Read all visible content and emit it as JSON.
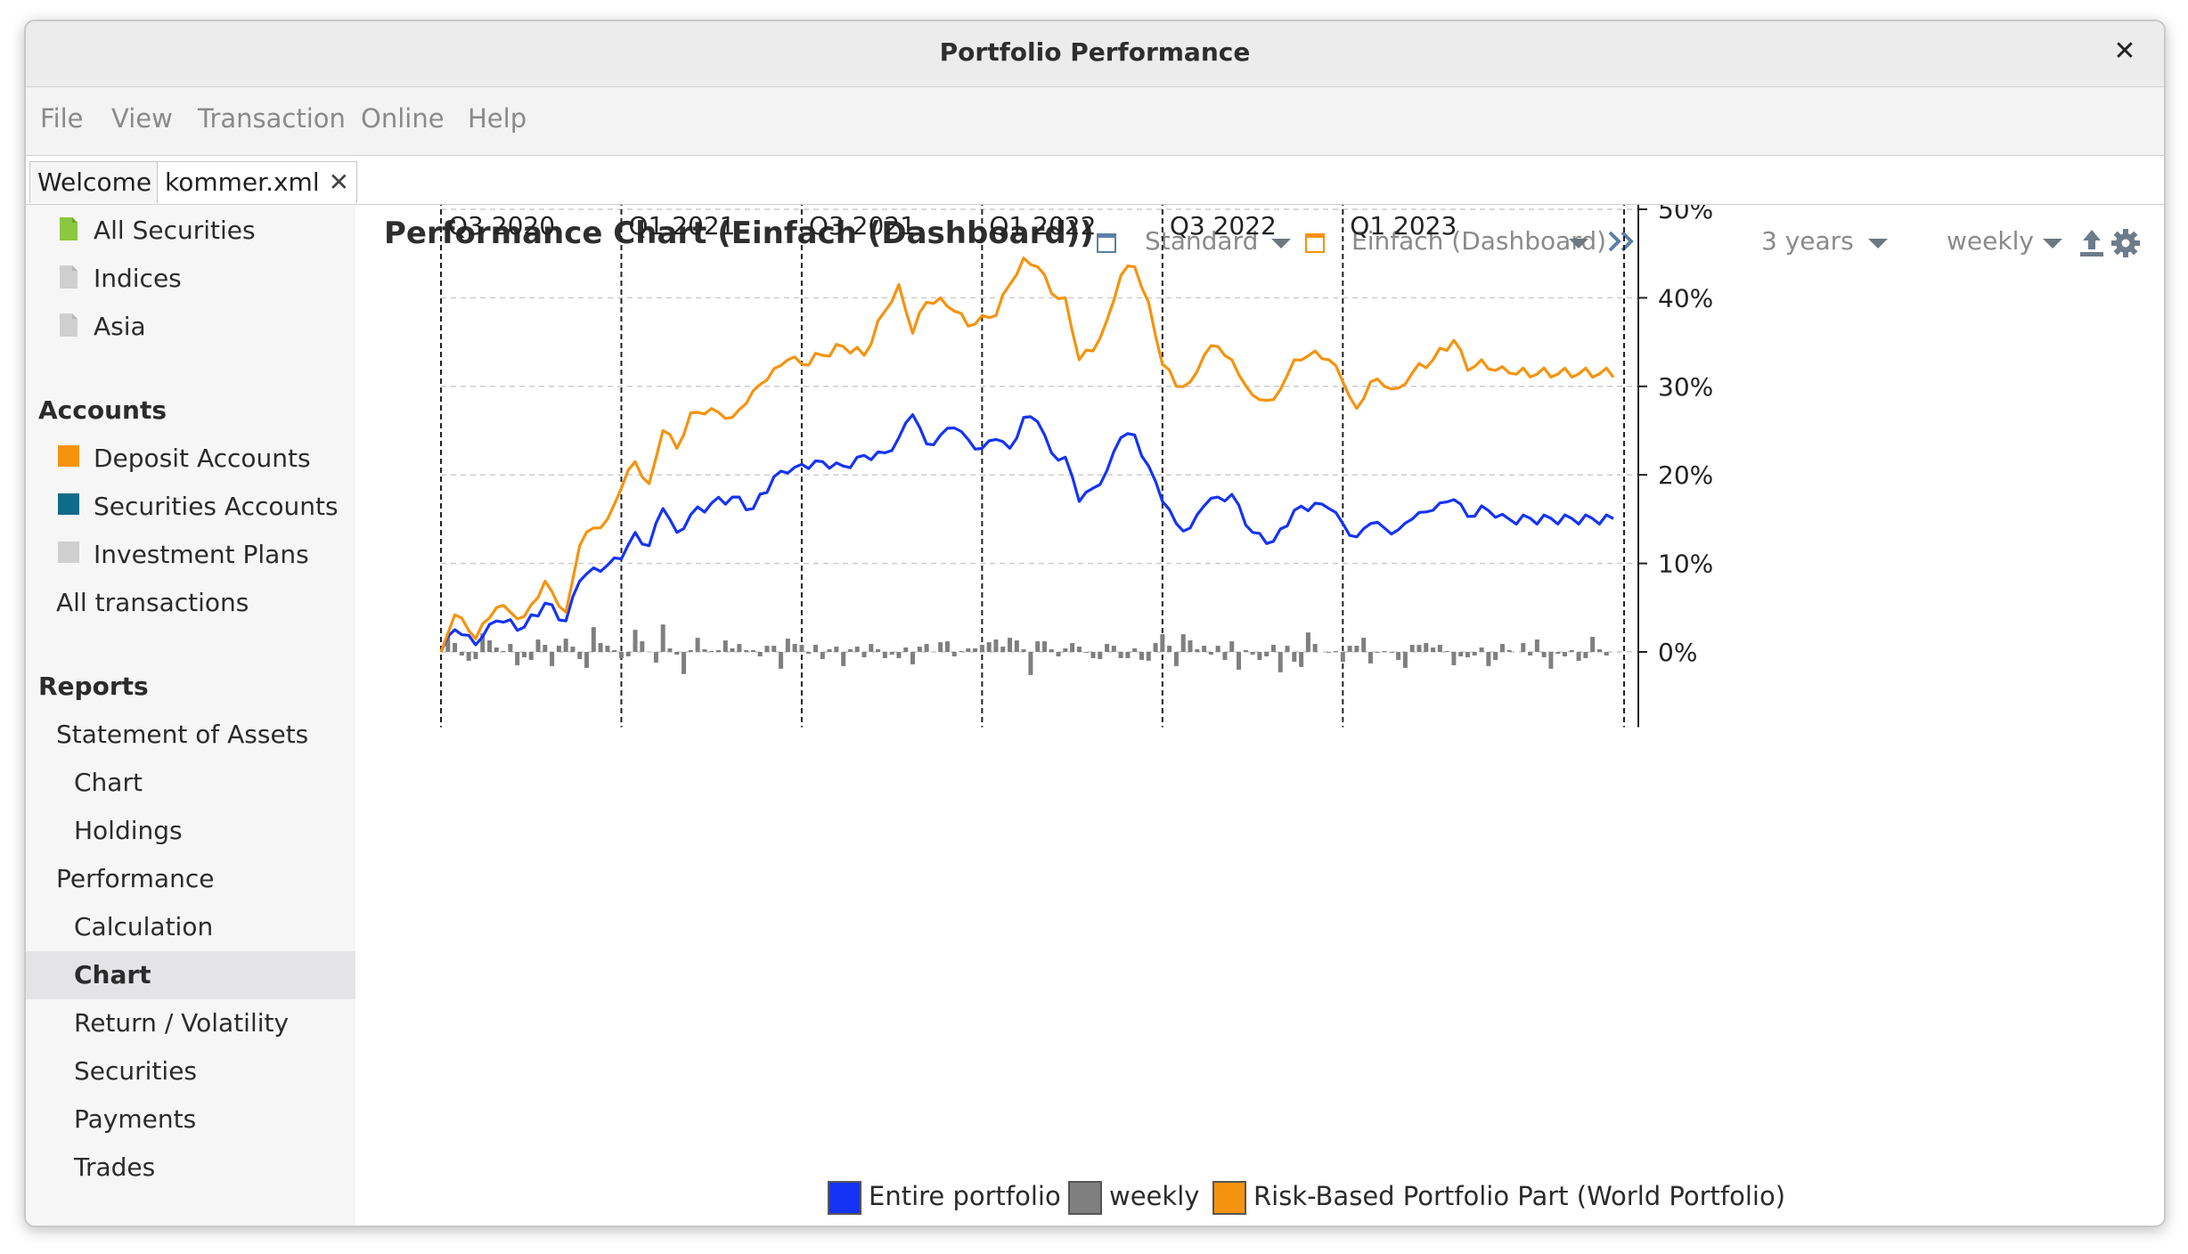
{
  "window": {
    "title": "Portfolio Performance"
  },
  "menu": [
    "File",
    "View",
    "Transaction",
    "Online",
    "Help"
  ],
  "tabs": [
    {
      "label": "Welcome"
    },
    {
      "label": "kommer.xml"
    }
  ],
  "sidebar": {
    "securities": [
      "All Securities",
      "Indices",
      "Asia"
    ],
    "accounts_header": "Accounts",
    "accounts": [
      "Deposit Accounts",
      "Securities Accounts",
      "Investment Plans"
    ],
    "all_transactions": "All transactions",
    "reports_header": "Reports",
    "reports": {
      "statement_of_assets": "Statement of Assets",
      "soa_children": [
        "Chart",
        "Holdings"
      ],
      "performance": "Performance",
      "perf_children": [
        "Calculation",
        "Chart",
        "Return / Volatility",
        "Securities",
        "Payments",
        "Trades"
      ],
      "selected": "Chart"
    }
  },
  "toolbar": {
    "chart_title": "Performance Chart (Einfach (Dashboard))",
    "view1": "Standard",
    "view2": "Einfach (Dashboard)",
    "period": "3 years",
    "interval": "weekly"
  },
  "colors": {
    "entire_portfolio": "#1533f5",
    "weekly": "#7f7f7f",
    "risk_based": "#f5930f"
  },
  "chart_data": {
    "type": "line",
    "x_labels": [
      "Q3 2020",
      "Q1 2021",
      "Q3 2021",
      "Q1 2022",
      "Q3 2022",
      "Q1 2023"
    ],
    "x_label_weeks": [
      0,
      26,
      52,
      78,
      104,
      130
    ],
    "y_ticks": [
      "0%",
      "10%",
      "20%",
      "30%",
      "40%",
      "50%"
    ],
    "y_values": [
      0,
      10,
      20,
      30,
      40,
      50
    ],
    "ylim": [
      -8.5,
      51
    ],
    "y_axis_position": "right",
    "grid": true,
    "legend_position": "bottom",
    "anchors_week": [
      0,
      2,
      5,
      8,
      12,
      15,
      18,
      20,
      22,
      24,
      26,
      28,
      30,
      32,
      34,
      36,
      39,
      42,
      45,
      48,
      50,
      52,
      55,
      58,
      61,
      64,
      66,
      68,
      70,
      72,
      74,
      76,
      78,
      80,
      82,
      84,
      86,
      88,
      90,
      92,
      94,
      96,
      98,
      100,
      102,
      104,
      106,
      108,
      110,
      112,
      114,
      117,
      120,
      123,
      126,
      128,
      130,
      132,
      134,
      136,
      138,
      140,
      143,
      146,
      148,
      150,
      152,
      154
    ],
    "series": [
      {
        "name": "Entire portfolio",
        "values": [
          0,
          2.5,
          0.8,
          3.5,
          2.8,
          5.5,
          3.5,
          8.0,
          9.5,
          9.8,
          10.5,
          13.5,
          12.0,
          16.2,
          13.5,
          15.5,
          16.8,
          17.5,
          16.2,
          19.8,
          20.2,
          21.2,
          21.5,
          21.0,
          22.2,
          22.5,
          24.2,
          26.8,
          23.5,
          24.5,
          25.3,
          24.0,
          23.0,
          24.0,
          23.0,
          26.5,
          26.0,
          22.5,
          22.0,
          17.0,
          18.5,
          20.5,
          24.2,
          24.5,
          21.0,
          17.0,
          14.5,
          14.0,
          16.5,
          17.5,
          17.8,
          13.5,
          12.5,
          16.0,
          16.8,
          16.2,
          14.5,
          13.0,
          14.5,
          14.0,
          13.8,
          15.0,
          16.0,
          17.2,
          15.3,
          16.5,
          15.2,
          15.0
        ],
        "color": "#1533f5"
      },
      {
        "name": "Risk-Based Portfolio Part (World Portfolio)",
        "values": [
          0,
          4.2,
          1.5,
          5.0,
          4.0,
          8.0,
          4.5,
          12.0,
          14.0,
          15.0,
          18.5,
          21.5,
          19.0,
          25.0,
          23.0,
          27.0,
          27.5,
          26.5,
          29.5,
          32.0,
          33.0,
          32.5,
          33.5,
          34.5,
          33.5,
          38.5,
          41.5,
          36.0,
          39.5,
          40.0,
          38.5,
          36.8,
          38.0,
          38.0,
          41.5,
          44.5,
          43.5,
          40.5,
          40.0,
          33.0,
          34.0,
          37.5,
          42.5,
          43.5,
          39.5,
          32.5,
          30.0,
          30.5,
          33.5,
          34.5,
          33.0,
          29.0,
          28.5,
          33.0,
          34.0,
          33.0,
          30.5,
          27.5,
          30.5,
          30.0,
          29.8,
          31.5,
          33.0,
          35.2,
          31.8,
          33.0,
          31.8,
          31.5
        ],
        "color": "#f5930f"
      }
    ],
    "bars": {
      "name": "weekly",
      "color": "#7f7f7f",
      "values": [
        0.0,
        1.9,
        1.0,
        -0.4,
        -1.0,
        -0.8,
        2.1,
        1.3,
        0.5,
        0.1,
        0.9,
        -1.5,
        -0.6,
        -0.9,
        1.4,
        0.8,
        -1.6,
        0.7,
        1.5,
        0.6,
        -0.8,
        -1.8,
        2.8,
        1.0,
        0.7,
        0.2,
        -0.7,
        -0.5,
        2.5,
        1.2,
        0.0,
        -1.2,
        3.1,
        0.4,
        -0.3,
        -2.5,
        0.2,
        1.6,
        0.3,
        0.1,
        0.2,
        1.3,
        0.4,
        0.9,
        0.2,
        0.2,
        -0.5,
        0.7,
        0.7,
        -1.9,
        1.5,
        0.9,
        0.8,
        -0.2,
        0.8,
        -0.8,
        0.3,
        0.6,
        -1.6,
        0.3,
        0.6,
        -0.6,
        0.9,
        0.3,
        -0.7,
        -0.3,
        -0.7,
        0.5,
        -1.4,
        0.6,
        0.9,
        0.0,
        1.1,
        1.2,
        -0.5,
        0.1,
        0.4,
        0.4,
        0.8,
        1.1,
        1.4,
        0.6,
        1.6,
        1.3,
        0.3,
        -2.6,
        1.2,
        1.2,
        0.3,
        -0.5,
        0.4,
        1.0,
        0.6,
        -0.1,
        -0.7,
        -0.8,
        0.9,
        0.7,
        -0.7,
        -0.7,
        0.4,
        -0.9,
        -1.0,
        1.0,
        2.0,
        0.7,
        -1.6,
        2.0,
        1.3,
        0.3,
        0.7,
        -0.3,
        0.7,
        -0.9,
        1.2,
        -2.0,
        0.2,
        -0.3,
        -0.9,
        -0.5,
        0.8,
        -2.3,
        0.7,
        -1.1,
        -1.7,
        2.2,
        0.9,
        0.0,
        -0.1,
        0.1,
        -1.1,
        0.7,
        0.7,
        1.6,
        -1.3,
        -0.1,
        0.1,
        -0.1,
        -0.9,
        -1.8,
        0.8,
        0.8,
        1.0,
        0.5,
        0.8,
        0.1,
        -1.5,
        -0.5,
        -0.6,
        -0.4,
        0.5,
        -1.6,
        -0.9,
        0.9,
        0.2,
        0.0,
        1.0,
        -0.4,
        1.4,
        -0.6,
        -1.9,
        -0.2,
        -0.5,
        0.2,
        -1.0,
        -0.7,
        1.7,
        0.3,
        -0.4,
        0.0
      ]
    },
    "legend": [
      "Entire portfolio",
      "weekly",
      "Risk-Based Portfolio Part (World Portfolio)"
    ]
  }
}
